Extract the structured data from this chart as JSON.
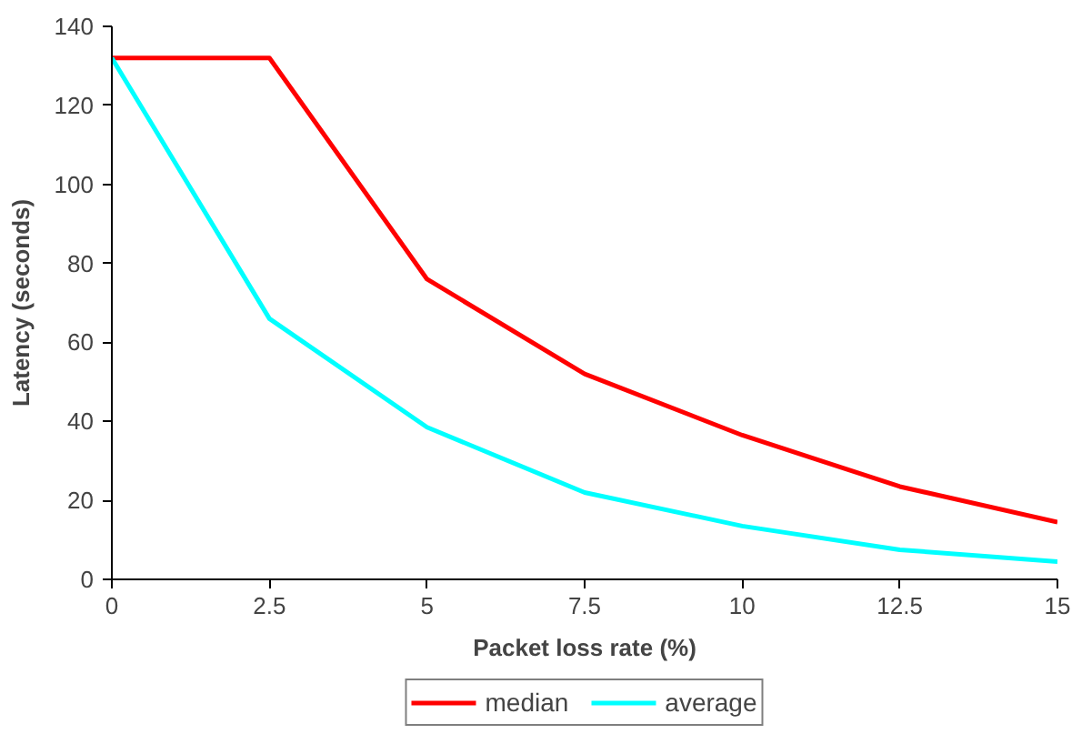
{
  "chart_data": {
    "type": "line",
    "xlabel": "Packet loss rate (%)",
    "ylabel": "Latency (seconds)",
    "x": [
      0,
      2.5,
      5,
      7.5,
      10,
      12.5,
      15
    ],
    "series": [
      {
        "name": "median",
        "color": "#ff0000",
        "values": [
          132,
          132,
          76,
          52,
          36.5,
          23.5,
          14.5
        ]
      },
      {
        "name": "average",
        "color": "#00ffff",
        "values": [
          132,
          66,
          38.5,
          22,
          13.5,
          7.5,
          4.5
        ]
      }
    ],
    "xlim": [
      0,
      15
    ],
    "ylim": [
      0,
      140
    ],
    "xticks": [
      0,
      2.5,
      5,
      7.5,
      10,
      12.5,
      15
    ],
    "yticks": [
      0,
      20,
      40,
      60,
      80,
      100,
      120,
      140
    ],
    "grid": false,
    "legend": "bottom",
    "marker": "none",
    "line_style": "solid"
  }
}
